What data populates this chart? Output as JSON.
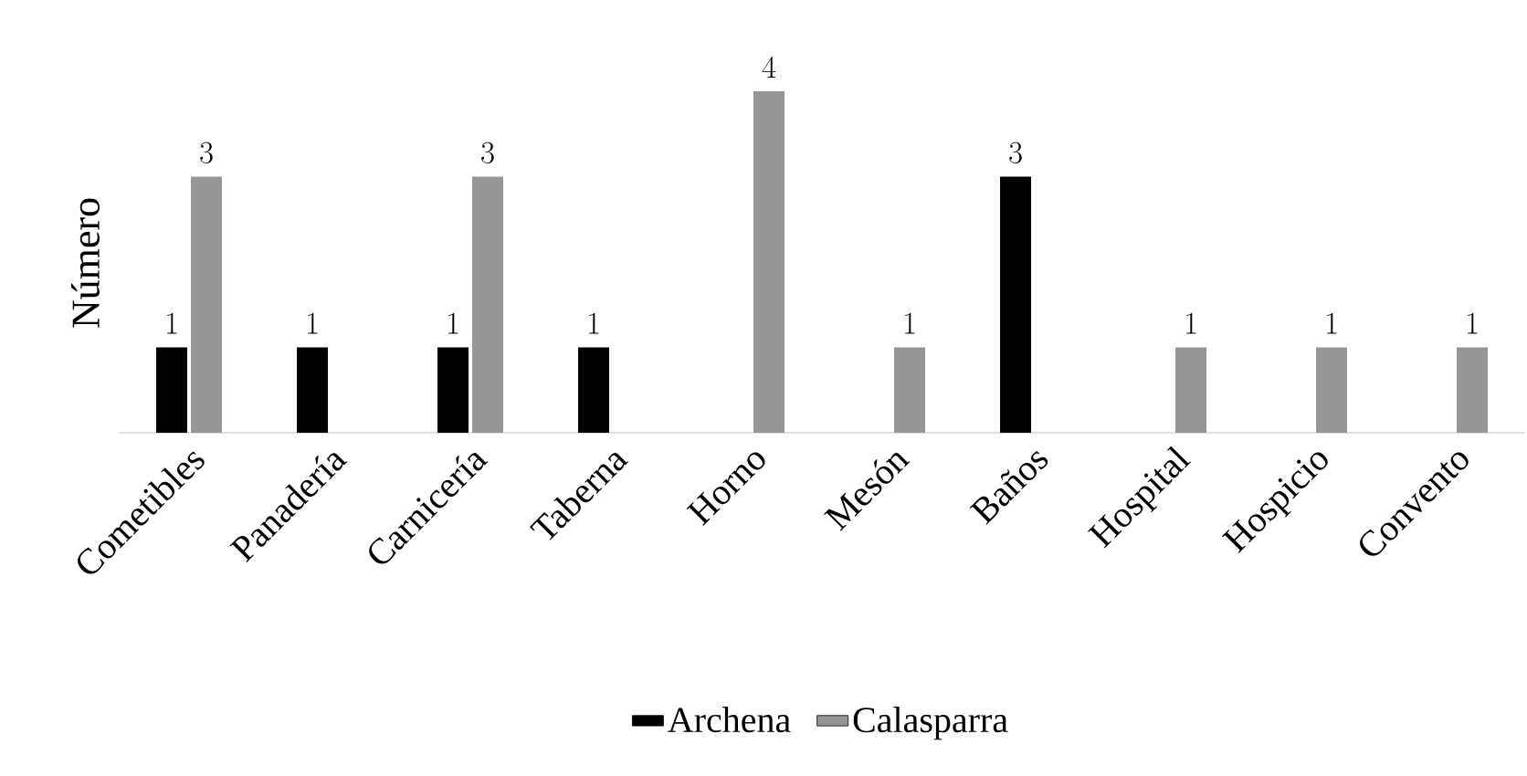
{
  "chart_data": {
    "type": "bar",
    "ylabel": "Número",
    "categories": [
      "Cometibles",
      "Panadería",
      "Carnicería",
      "Taberna",
      "Horno",
      "Mesón",
      "Baños",
      "Hospital",
      "Hospicio",
      "Convento"
    ],
    "series": [
      {
        "name": "Archena",
        "color": "#000000",
        "values": [
          1,
          1,
          1,
          1,
          null,
          null,
          3,
          null,
          null,
          null
        ]
      },
      {
        "name": "Calasparra",
        "color": "#969696",
        "values": [
          3,
          null,
          3,
          null,
          4,
          1,
          null,
          1,
          1,
          1
        ]
      }
    ],
    "data_labels": true,
    "legend": "bottom"
  }
}
